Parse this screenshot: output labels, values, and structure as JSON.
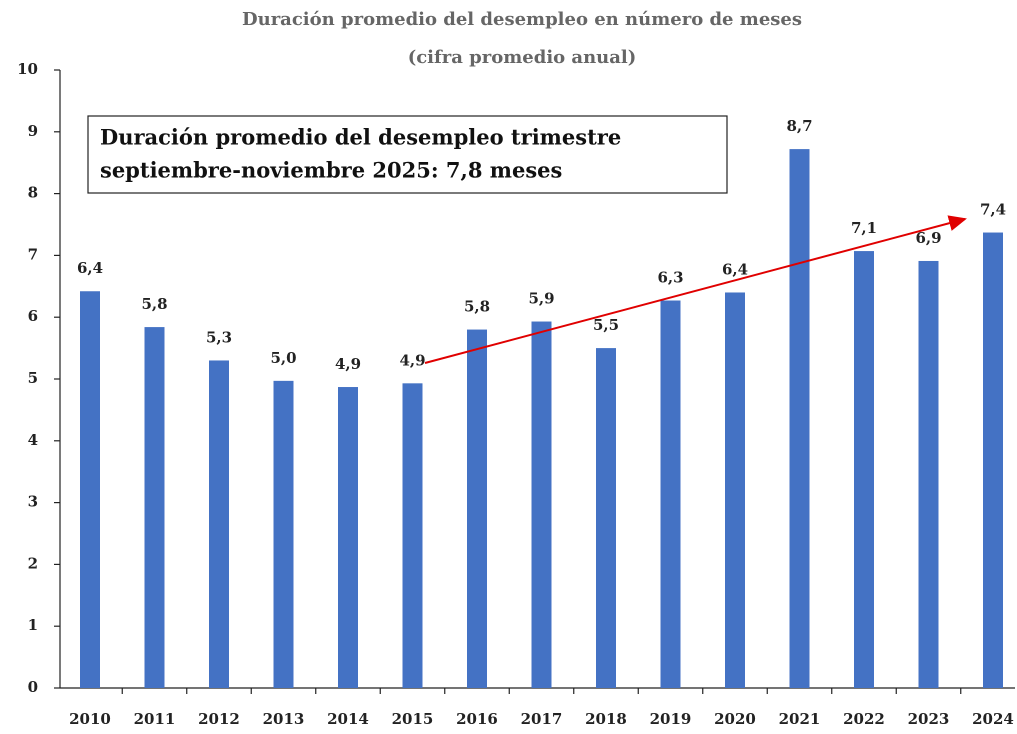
{
  "chart_data": {
    "type": "bar",
    "title": "Duración promedio del desempleo en número de meses",
    "subtitle": "(cifra promedio anual)",
    "annotation": [
      "Duración promedio del desempleo trimestre",
      "septiembre-noviembre 2025: 7,8 meses"
    ],
    "categories": [
      "2010",
      "2011",
      "2012",
      "2013",
      "2014",
      "2015",
      "2016",
      "2017",
      "2018",
      "2019",
      "2020",
      "2021",
      "2022",
      "2023",
      "2024"
    ],
    "values": [
      6.42,
      5.84,
      5.3,
      4.97,
      4.87,
      4.93,
      5.8,
      5.93,
      5.5,
      6.27,
      6.4,
      8.72,
      7.07,
      6.91,
      7.37
    ],
    "value_labels": [
      "6,4",
      "5,8",
      "5,3",
      "5,0",
      "4,9",
      "4,9",
      "5,8",
      "5,9",
      "5,5",
      "6,3",
      "6,4",
      "8,7",
      "7,1",
      "6,9",
      "7,4"
    ],
    "color": "#4472c4",
    "ylim": [
      0,
      10
    ],
    "yticks": [
      0,
      1,
      2,
      3,
      4,
      5,
      6,
      7,
      8,
      9,
      10
    ],
    "grid": false
  }
}
